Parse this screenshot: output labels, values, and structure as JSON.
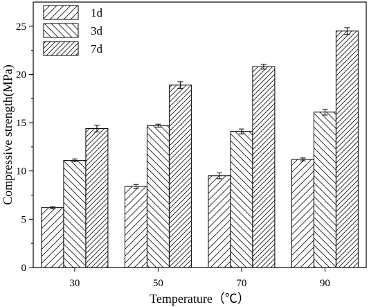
{
  "chart_data": {
    "type": "bar",
    "categories": [
      "30",
      "50",
      "70",
      "90"
    ],
    "series": [
      {
        "name": "1d",
        "values": [
          6.2,
          8.4,
          9.5,
          11.2
        ],
        "errors": [
          0.1,
          0.2,
          0.3,
          0.15
        ],
        "hatch": "forward"
      },
      {
        "name": "3d",
        "values": [
          11.1,
          14.7,
          14.1,
          16.1
        ],
        "errors": [
          0.15,
          0.15,
          0.25,
          0.3
        ],
        "hatch": "backward"
      },
      {
        "name": "7d",
        "values": [
          14.4,
          18.9,
          20.8,
          24.5
        ],
        "errors": [
          0.35,
          0.35,
          0.25,
          0.35
        ],
        "hatch": "forward-dense"
      }
    ],
    "xlabel": "Temperature（℃）",
    "ylabel": "Compressive strength(MPa)",
    "ylim": [
      0,
      27.5
    ],
    "yticks": [
      0,
      5,
      10,
      15,
      20,
      25
    ],
    "yticklabels": [
      "0",
      "5",
      "10",
      "15",
      "20",
      "25"
    ],
    "grid": false,
    "legend_position": "top-left"
  }
}
